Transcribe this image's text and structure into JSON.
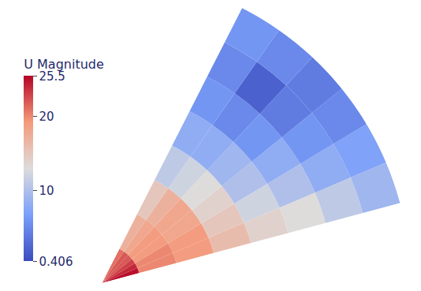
{
  "chart_data": {
    "type": "heatmap",
    "colorbar_title": "U Magnitude",
    "r_edges": [
      0,
      0.125,
      0.25,
      0.375,
      0.5,
      0.625,
      0.75,
      0.875,
      1
    ],
    "theta_edges": [
      15,
      23,
      31,
      39,
      47,
      55,
      63
    ],
    "cells": [
      [
        25,
        24,
        23,
        22,
        22,
        21
      ],
      [
        20,
        20,
        19,
        19,
        18,
        17
      ],
      [
        19,
        19,
        18,
        18,
        17,
        15
      ],
      [
        16,
        15,
        14,
        13,
        12,
        11
      ],
      [
        14,
        12,
        10,
        9,
        8,
        8
      ],
      [
        13,
        10,
        8,
        6,
        5,
        6
      ],
      [
        11,
        8,
        6,
        4,
        2,
        5
      ],
      [
        9,
        7,
        5,
        4,
        5,
        6
      ]
    ],
    "colorbar_range": [
      0.406,
      25.5
    ],
    "colorbar_ticks": [
      0.406,
      10,
      20,
      25.5
    ],
    "tick_labels": false,
    "grid": false
  }
}
